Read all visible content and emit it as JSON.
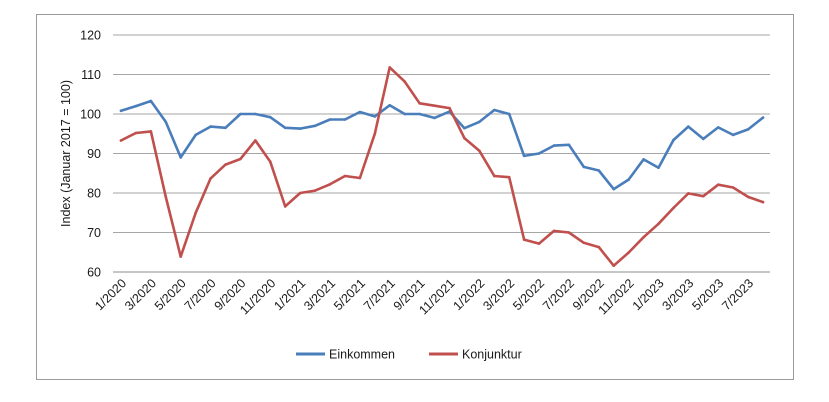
{
  "chart_data": {
    "type": "line",
    "title": "",
    "xlabel": "",
    "ylabel": "Index (Januar 2017 = 100)",
    "ylim": [
      60,
      120
    ],
    "yticks": [
      60,
      70,
      80,
      90,
      100,
      110,
      120
    ],
    "grid": true,
    "legend_position": "bottom",
    "categories": [
      "1/2020",
      "2/2020",
      "3/2020",
      "4/2020",
      "5/2020",
      "6/2020",
      "7/2020",
      "8/2020",
      "9/2020",
      "10/2020",
      "11/2020",
      "12/2020",
      "1/2021",
      "2/2021",
      "3/2021",
      "4/2021",
      "5/2021",
      "6/2021",
      "7/2021",
      "8/2021",
      "9/2021",
      "10/2021",
      "11/2021",
      "12/2021",
      "1/2022",
      "2/2022",
      "3/2022",
      "4/2022",
      "5/2022",
      "6/2022",
      "7/2022",
      "8/2022",
      "9/2022",
      "10/2022",
      "11/2022",
      "12/2022",
      "1/2023",
      "2/2023",
      "3/2023",
      "4/2023",
      "5/2023",
      "6/2023",
      "7/2023",
      "8/2023"
    ],
    "tick_labels": [
      "1/2020",
      "3/2020",
      "5/2020",
      "7/2020",
      "9/2020",
      "11/2020",
      "1/2021",
      "3/2021",
      "5/2021",
      "7/2021",
      "9/2021",
      "11/2021",
      "1/2022",
      "3/2022",
      "5/2022",
      "7/2022",
      "9/2022",
      "11/2022",
      "1/2023",
      "3/2023",
      "5/2023",
      "7/2023"
    ],
    "series": [
      {
        "name": "Einkommen",
        "color": "#4a7ebb",
        "values": [
          100.8,
          102.0,
          103.3,
          98.0,
          89.0,
          94.7,
          96.8,
          96.5,
          100.0,
          100.0,
          99.2,
          96.5,
          96.3,
          97.0,
          98.6,
          98.6,
          100.5,
          99.4,
          102.2,
          100.0,
          100.0,
          99.0,
          100.6,
          96.4,
          98.0,
          101.0,
          100.0,
          89.4,
          90.0,
          92.0,
          92.2,
          86.6,
          85.7,
          81.0,
          83.4,
          88.5,
          86.4,
          93.4,
          96.8,
          93.7,
          96.6,
          94.7,
          96.1,
          99.1
        ]
      },
      {
        "name": "Konjunktur",
        "color": "#c0504d",
        "values": [
          93.3,
          95.2,
          95.6,
          79.0,
          63.9,
          75.0,
          83.7,
          87.2,
          88.6,
          93.3,
          87.9,
          76.6,
          80.0,
          80.6,
          82.2,
          84.3,
          83.8,
          95.0,
          111.8,
          108.2,
          102.7,
          102.1,
          101.5,
          93.9,
          90.7,
          84.3,
          84.0,
          68.2,
          67.2,
          70.4,
          70.0,
          67.4,
          66.3,
          61.6,
          64.9,
          68.8,
          72.2,
          76.2,
          79.9,
          79.2,
          82.1,
          81.4,
          79.0,
          77.7
        ]
      }
    ]
  }
}
